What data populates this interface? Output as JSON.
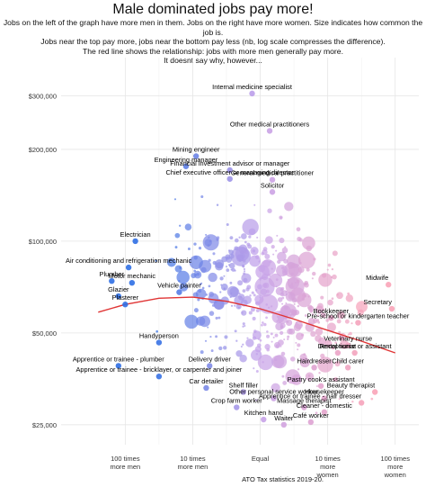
{
  "title": "Male dominated jobs pay more!",
  "subtitle": "Jobs on the left of the graph have more men in them. Jobs on the right have more women. Size indicates how common the job is.\nJobs near the top pay more, jobs near the bottom pay less (nb, log scale compresses the difference).\nThe red line shows the relationship: jobs with more men generally pay more.\nIt doesnt say why, however...",
  "caption": "ATO Tax statistics 2019-20.",
  "chart_data": {
    "type": "scatter",
    "x_scale": "log ratio of women to men",
    "y_scale": "log",
    "x_ticks": [
      {
        "value": -2,
        "label": [
          "100 times",
          "more men"
        ]
      },
      {
        "value": -1,
        "label": [
          "10 times",
          "more men"
        ]
      },
      {
        "value": 0,
        "label": [
          "Equal"
        ]
      },
      {
        "value": 1,
        "label": [
          "10 times",
          "more",
          "women"
        ]
      },
      {
        "value": 2,
        "label": [
          "100 times",
          "more",
          "women"
        ]
      }
    ],
    "y_ticks": [
      {
        "value": 25000,
        "label": "$25,000"
      },
      {
        "value": 50000,
        "label": "$50,000"
      },
      {
        "value": 100000,
        "label": "$100,000"
      },
      {
        "value": 200000,
        "label": "$200,000"
      },
      {
        "value": 300000,
        "label": "$300,000"
      }
    ],
    "xlim": [
      -2.95,
      2.35
    ],
    "ylim": [
      21500,
      400000
    ],
    "grid": true,
    "colors": {
      "men": "#2f6fe4",
      "mid": "#c6a3ea",
      "women": "#f9a4b8",
      "trend": "#e03535",
      "grid": "#e6e6e6"
    },
    "trend_line": [
      [
        -2.4,
        58500
      ],
      [
        -2.0,
        62000
      ],
      [
        -1.5,
        65000
      ],
      [
        -1.0,
        65500
      ],
      [
        -0.5,
        63500
      ],
      [
        0.0,
        60000
      ],
      [
        0.5,
        55500
      ],
      [
        1.0,
        51000
      ],
      [
        1.5,
        47000
      ],
      [
        2.0,
        43000
      ]
    ],
    "labeled_jobs": [
      {
        "name": "Internal medicine specialist",
        "x": -0.12,
        "y": 305000
      },
      {
        "name": "Other medical practitioners",
        "x": 0.14,
        "y": 230000
      },
      {
        "name": "Mining engineer",
        "x": -0.95,
        "y": 190000
      },
      {
        "name": "Engineering manager",
        "x": -1.1,
        "y": 176000
      },
      {
        "name": "Financial investment advisor or manager",
        "x": -0.45,
        "y": 171000
      },
      {
        "name": "Chief executive officer or managing director",
        "x": -0.45,
        "y": 160000
      },
      {
        "name": "General medical practitioner",
        "x": 0.18,
        "y": 159000
      },
      {
        "name": "Solicitor",
        "x": 0.18,
        "y": 145000
      },
      {
        "name": "Electrician",
        "x": -1.85,
        "y": 100000
      },
      {
        "name": "Air conditioning and refrigeration mechanic",
        "x": -1.95,
        "y": 82000
      },
      {
        "name": "Plumber",
        "x": -2.2,
        "y": 74000
      },
      {
        "name": "Motor mechanic",
        "x": -1.9,
        "y": 73000
      },
      {
        "name": "Vehicle painter",
        "x": -1.2,
        "y": 68000
      },
      {
        "name": "Glazier",
        "x": -2.1,
        "y": 66000
      },
      {
        "name": "Plasterer",
        "x": -2.0,
        "y": 62000
      },
      {
        "name": "Midwife",
        "x": 1.9,
        "y": 72000
      },
      {
        "name": "Secretary",
        "x": 1.95,
        "y": 60000
      },
      {
        "name": "Bookkeeper",
        "x": 1.05,
        "y": 56000
      },
      {
        "name": "Pre-school or kindergarten teacher",
        "x": 1.45,
        "y": 54000
      },
      {
        "name": "Handyperson",
        "x": -1.5,
        "y": 46500
      },
      {
        "name": "Veterinary nurse",
        "x": 1.3,
        "y": 45500
      },
      {
        "name": "Receptionist",
        "x": 1.15,
        "y": 43000
      },
      {
        "name": "Dental nurse or assistant",
        "x": 1.4,
        "y": 43000
      },
      {
        "name": "Apprentice or trainee - plumber",
        "x": -2.1,
        "y": 39000
      },
      {
        "name": "Delivery driver",
        "x": -0.75,
        "y": 39000
      },
      {
        "name": "Hairdresser",
        "x": 0.8,
        "y": 38500
      },
      {
        "name": "Child carer",
        "x": 1.3,
        "y": 38500
      },
      {
        "name": "Apprentice or trainee - bricklayer, or carpenter and joiner",
        "x": -1.5,
        "y": 36000
      },
      {
        "name": "Car detailer",
        "x": -0.8,
        "y": 33000
      },
      {
        "name": "Pastry cook's assistant",
        "x": 0.9,
        "y": 33500
      },
      {
        "name": "Beauty therapist",
        "x": 1.7,
        "y": 32000
      },
      {
        "name": "Shelf filler",
        "x": -0.25,
        "y": 32000
      },
      {
        "name": "Housekeeper",
        "x": 0.95,
        "y": 30500
      },
      {
        "name": "Other personal service worker",
        "x": 0.2,
        "y": 30500
      },
      {
        "name": "Apprentice or trainee - hair dresser",
        "x": 1.5,
        "y": 29500
      },
      {
        "name": "Crop farm worker",
        "x": -0.35,
        "y": 28500
      },
      {
        "name": "Massage therapist",
        "x": 0.65,
        "y": 28500
      },
      {
        "name": "Cleaner - domestic",
        "x": 0.95,
        "y": 27500
      },
      {
        "name": "Kitchen hand",
        "x": 0.05,
        "y": 26000
      },
      {
        "name": "Café worker",
        "x": 0.75,
        "y": 25500
      },
      {
        "name": "Waiter",
        "x": 0.35,
        "y": 25000
      }
    ]
  }
}
